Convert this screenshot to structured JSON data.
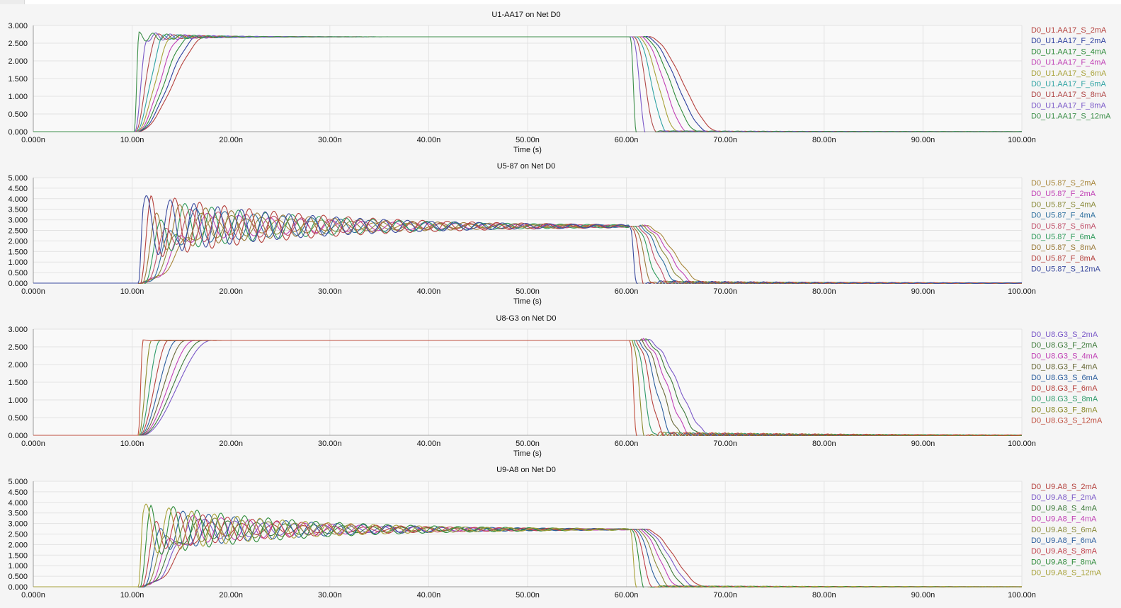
{
  "colors": {
    "background": "#f5f5f5",
    "grid": "#e3e3e3",
    "trace_palette": [
      "#b5413d",
      "#2d3f9e",
      "#2e8b3a",
      "#c040b5",
      "#a8a23a",
      "#2fa3a3",
      "#b04848",
      "#7a58c8",
      "#3d8f4a"
    ]
  },
  "chart_data": [
    {
      "type": "line",
      "title": "U1-AA17 on Net D0",
      "xlabel": "Time (s)",
      "ylabel": "",
      "xlim": [
        0,
        100
      ],
      "ylim": [
        0,
        3
      ],
      "x_ticks": [
        "0.000n",
        "10.00n",
        "20.00n",
        "30.00n",
        "40.00n",
        "50.00n",
        "60.00n",
        "70.00n",
        "80.00n",
        "90.00n",
        "100.00n"
      ],
      "y_ticks": [
        "3.000",
        "2.500",
        "2.000",
        "1.500",
        "1.000",
        "0.500",
        "0.000"
      ],
      "y_tick_values": [
        3,
        2.5,
        2,
        1.5,
        1,
        0.5,
        0
      ],
      "grid": true,
      "legend_position": "right",
      "series": [
        {
          "name": "D0_U1.AA17_S_2mA",
          "color": "#b5413d"
        },
        {
          "name": "D0_U1.AA17_F_2mA",
          "color": "#2d3f9e"
        },
        {
          "name": "D0_U1.AA17_S_4mA",
          "color": "#2e8b3a"
        },
        {
          "name": "D0_U1.AA17_F_4mA",
          "color": "#c040b5"
        },
        {
          "name": "D0_U1.AA17_S_6mA",
          "color": "#a8a23a"
        },
        {
          "name": "D0_U1.AA17_F_6mA",
          "color": "#2fa3a3"
        },
        {
          "name": "D0_U1.AA17_S_8mA",
          "color": "#b04848"
        },
        {
          "name": "D0_U1.AA17_F_8mA",
          "color": "#7a58c8"
        },
        {
          "name": "D0_U1.AA17_S_12mA",
          "color": "#3d8f4a"
        }
      ]
    },
    {
      "type": "line",
      "title": "U5-87 on Net D0",
      "xlabel": "Time (s)",
      "ylabel": "",
      "xlim": [
        0,
        100
      ],
      "ylim": [
        0,
        5
      ],
      "x_ticks": [
        "0.000n",
        "10.00n",
        "20.00n",
        "30.00n",
        "40.00n",
        "50.00n",
        "60.00n",
        "70.00n",
        "80.00n",
        "90.00n",
        "100.00n"
      ],
      "y_ticks": [
        "5.000",
        "4.500",
        "4.000",
        "3.500",
        "3.000",
        "2.500",
        "2.000",
        "1.500",
        "1.000",
        "0.500",
        "0.000"
      ],
      "y_tick_values": [
        5,
        4.5,
        4,
        3.5,
        3,
        2.5,
        2,
        1.5,
        1,
        0.5,
        0
      ],
      "grid": true,
      "legend_position": "right",
      "series": [
        {
          "name": "D0_U5.87_S_2mA",
          "color": "#a8863a"
        },
        {
          "name": "D0_U5.87_F_2mA",
          "color": "#c040b5"
        },
        {
          "name": "D0_U5.87_S_4mA",
          "color": "#8a8a3a"
        },
        {
          "name": "D0_U5.87_F_4mA",
          "color": "#2d6f9e"
        },
        {
          "name": "D0_U5.87_S_6mA",
          "color": "#c0506a"
        },
        {
          "name": "D0_U5.87_F_6mA",
          "color": "#2e9a5a"
        },
        {
          "name": "D0_U5.87_S_8mA",
          "color": "#9a7a3a"
        },
        {
          "name": "D0_U5.87_F_8mA",
          "color": "#b5413d"
        },
        {
          "name": "D0_U5.87_S_12mA",
          "color": "#3a4a9e"
        }
      ]
    },
    {
      "type": "line",
      "title": "U8-G3 on Net D0",
      "xlabel": "Time (s)",
      "ylabel": "",
      "xlim": [
        0,
        100
      ],
      "ylim": [
        0,
        3
      ],
      "x_ticks": [
        "0.000n",
        "10.00n",
        "20.00n",
        "30.00n",
        "40.00n",
        "50.00n",
        "60.00n",
        "70.00n",
        "80.00n",
        "90.00n",
        "100.00n"
      ],
      "y_ticks": [
        "3.000",
        "2.500",
        "2.000",
        "1.500",
        "1.000",
        "0.500",
        "0.000"
      ],
      "y_tick_values": [
        3,
        2.5,
        2,
        1.5,
        1,
        0.5,
        0
      ],
      "grid": true,
      "legend_position": "right",
      "series": [
        {
          "name": "D0_U8.G3_S_2mA",
          "color": "#7a58c8"
        },
        {
          "name": "D0_U8.G3_F_2mA",
          "color": "#3d7a3a"
        },
        {
          "name": "D0_U8.G3_S_4mA",
          "color": "#c040b5"
        },
        {
          "name": "D0_U8.G3_F_4mA",
          "color": "#6a6a3a"
        },
        {
          "name": "D0_U8.G3_S_6mA",
          "color": "#2d5f9e"
        },
        {
          "name": "D0_U8.G3_F_6mA",
          "color": "#b5413d"
        },
        {
          "name": "D0_U8.G3_S_8mA",
          "color": "#2e9a6a"
        },
        {
          "name": "D0_U8.G3_F_8mA",
          "color": "#8a8a2a"
        },
        {
          "name": "D0_U8.G3_S_12mA",
          "color": "#c05040"
        }
      ]
    },
    {
      "type": "line",
      "title": "U9-A8 on Net D0",
      "xlabel": "",
      "ylabel": "",
      "xlim": [
        0,
        100
      ],
      "ylim": [
        0,
        5
      ],
      "x_ticks": [
        "0.000n",
        "10.00n",
        "20.00n",
        "30.00n",
        "40.00n",
        "50.00n",
        "60.00n",
        "70.00n",
        "80.00n",
        "90.00n",
        "100.00n"
      ],
      "y_ticks": [
        "5.000",
        "4.500",
        "4.000",
        "3.500",
        "3.000",
        "2.500",
        "2.000",
        "1.500",
        "1.000",
        "0.500",
        "0.000"
      ],
      "y_tick_values": [
        5,
        4.5,
        4,
        3.5,
        3,
        2.5,
        2,
        1.5,
        1,
        0.5,
        0
      ],
      "grid": true,
      "legend_position": "right",
      "series": [
        {
          "name": "D0_U9.A8_S_2mA",
          "color": "#b5413d"
        },
        {
          "name": "D0_U9.A8_F_2mA",
          "color": "#7a58c8"
        },
        {
          "name": "D0_U9.A8_S_4mA",
          "color": "#3d7a3a"
        },
        {
          "name": "D0_U9.A8_F_4mA",
          "color": "#c040b5"
        },
        {
          "name": "D0_U9.A8_S_6mA",
          "color": "#8a8a3a"
        },
        {
          "name": "D0_U9.A8_F_6mA",
          "color": "#2d5f9e"
        },
        {
          "name": "D0_U9.A8_S_8mA",
          "color": "#c0404a"
        },
        {
          "name": "D0_U9.A8_F_8mA",
          "color": "#2e8b3a"
        },
        {
          "name": "D0_U9.A8_S_12mA",
          "color": "#a8a23a"
        }
      ]
    }
  ]
}
